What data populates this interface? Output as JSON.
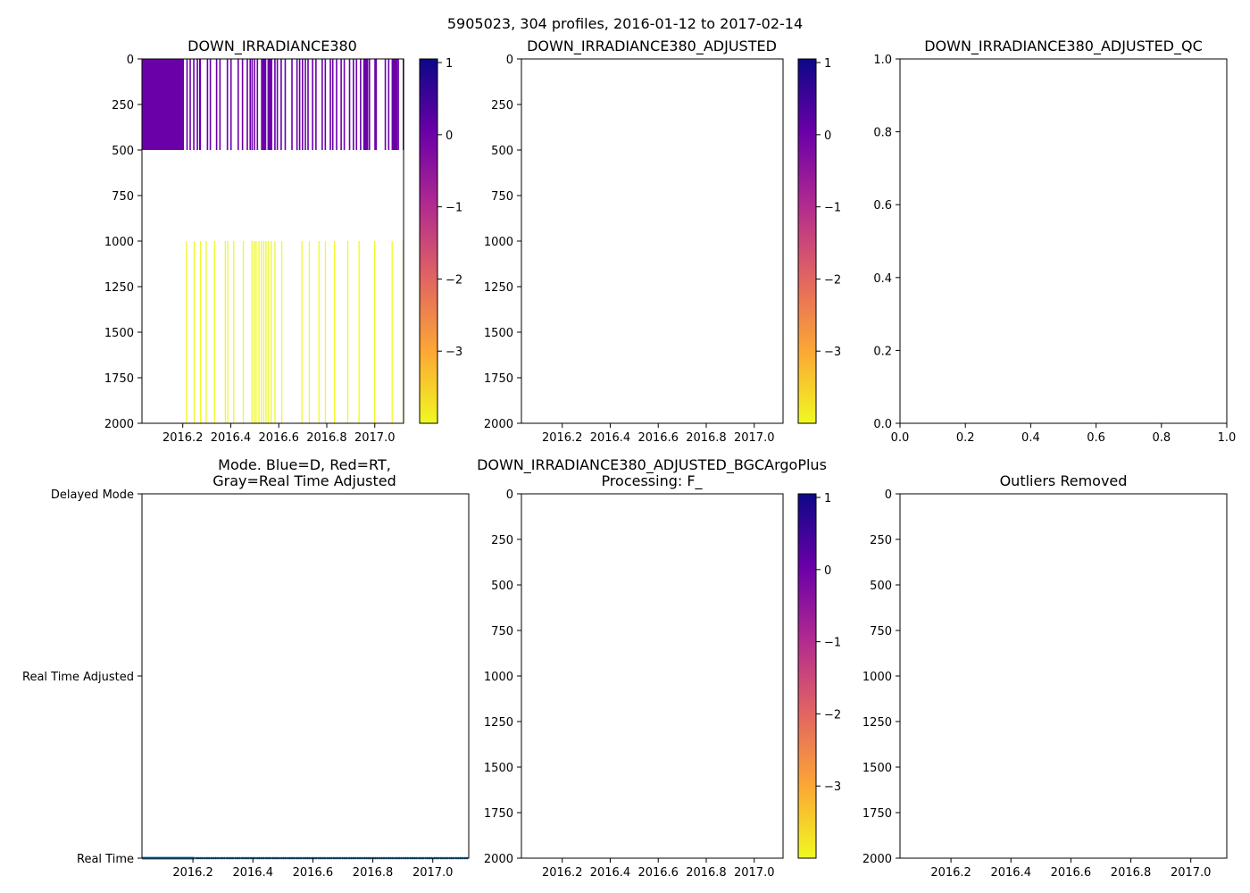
{
  "figure": {
    "suptitle": "5905023, 304 profiles, 2016-01-12 to 2017-02-14",
    "year_ticks": [
      2016.2,
      2016.4,
      2016.6,
      2016.8,
      2017.0
    ],
    "year_tick_labels": [
      "2016.2",
      "2016.4",
      "2016.6",
      "2016.8",
      "2017.0"
    ],
    "x_range": [
      2016.03,
      2017.12
    ],
    "depth_range": [
      0,
      2000
    ],
    "depth_ticks": [
      0,
      250,
      500,
      750,
      1000,
      1250,
      1500,
      1750,
      2000
    ],
    "colormap": [
      "#0d0887",
      "#6a00a8",
      "#b12a90",
      "#e16462",
      "#fca636",
      "#f0f921"
    ],
    "colorbar_range": [
      -4.0,
      1.05
    ],
    "colorbar_ticks": [
      1,
      0,
      -1,
      -2,
      -3
    ],
    "colorbar_tick_labels": [
      "1",
      "0",
      "−1",
      "−2",
      "−3"
    ],
    "mode_series_color": "#1f77b4",
    "fill_color": "#6a00a8",
    "deep_line_color": "#f0f921"
  },
  "chart_data": [
    {
      "id": "raw",
      "type": "heatmap",
      "title": "DOWN_IRRADIANCE380",
      "xlabel": "",
      "ylabel": "",
      "xlim": [
        2016.03,
        2017.12
      ],
      "ylim": [
        2000,
        0
      ],
      "colorbar": true,
      "shallow_layer": {
        "depth_range": [
          0,
          500
        ],
        "value": 0.0,
        "solid_ranges": [
          [
            2016.03,
            2016.205
          ]
        ],
        "profile_times": [
          2016.215,
          2016.228,
          2016.243,
          2016.258,
          2016.268,
          2016.3,
          2016.312,
          2016.338,
          2016.352,
          2016.383,
          2016.398,
          2016.428,
          2016.446,
          2016.466,
          2016.478,
          2016.486,
          2016.496,
          2016.508,
          2016.526,
          2016.541,
          2016.553,
          2016.567,
          2016.581,
          2016.591,
          2016.607,
          2016.624,
          2016.652,
          2016.673,
          2016.684,
          2016.696,
          2016.708,
          2016.719,
          2016.738,
          2016.752,
          2016.778,
          2016.791,
          2016.812,
          2016.822,
          2016.838,
          2016.857,
          2016.87,
          2016.892,
          2016.908,
          2016.921,
          2016.938,
          2016.96,
          2016.975,
          2016.998,
          2017.003,
          2017.041,
          2017.055,
          2017.08,
          2017.095,
          2017.12
        ],
        "block_ranges": [
          [
            2016.268,
            2016.276
          ],
          [
            2016.528,
            2016.548
          ],
          [
            2016.555,
            2016.571
          ],
          [
            2016.952,
            2016.973
          ],
          [
            2017.07,
            2017.095
          ]
        ]
      },
      "deep_profiles": {
        "depth_range": [
          1000,
          2000
        ],
        "value": -4.0,
        "profile_times": [
          2016.213,
          2016.245,
          2016.272,
          2016.295,
          2016.33,
          2016.375,
          2016.385,
          2016.41,
          2016.45,
          2016.486,
          2016.495,
          2016.503,
          2016.515,
          2016.525,
          2016.535,
          2016.544,
          2016.553,
          2016.566,
          2016.582,
          2016.61,
          2016.694,
          2016.725,
          2016.765,
          2016.792,
          2016.83,
          2016.885,
          2016.932,
          2016.997,
          2017.07,
          2017.118
        ]
      }
    },
    {
      "id": "adjusted",
      "type": "heatmap",
      "title": "DOWN_IRRADIANCE380_ADJUSTED",
      "xlabel": "",
      "ylabel": "",
      "xlim": [
        2016.03,
        2017.12
      ],
      "ylim": [
        2000,
        0
      ],
      "colorbar": true,
      "values": []
    },
    {
      "id": "adjusted_qc",
      "type": "scatter",
      "title": "DOWN_IRRADIANCE380_ADJUSTED_QC",
      "xlabel": "",
      "ylabel": "",
      "xlim": [
        0,
        1
      ],
      "ylim": [
        0,
        1
      ],
      "x_ticks": [
        0.0,
        0.2,
        0.4,
        0.6,
        0.8,
        1.0
      ],
      "x_tick_labels": [
        "0.0",
        "0.2",
        "0.4",
        "0.6",
        "0.8",
        "1.0"
      ],
      "y_ticks": [
        0.0,
        0.2,
        0.4,
        0.6,
        0.8,
        1.0
      ],
      "y_tick_labels": [
        "0.0",
        "0.2",
        "0.4",
        "0.6",
        "0.8",
        "1.0"
      ],
      "values": []
    },
    {
      "id": "mode",
      "type": "scatter",
      "title_lines": [
        "Mode. Blue=D, Red=RT,",
        "Gray=Real Time Adjusted"
      ],
      "xlabel": "",
      "ylabel": "",
      "xlim": [
        2016.03,
        2017.12
      ],
      "categories": [
        "Delayed Mode",
        "Real Time Adjusted",
        "Real Time"
      ],
      "series": [
        {
          "name": "Real Time",
          "level": "Real Time",
          "solid_ranges": [
            [
              2016.03,
              2016.205
            ]
          ],
          "x": [
            2016.211,
            2016.218,
            2016.225,
            2016.232,
            2016.24,
            2016.247,
            2016.254,
            2016.262,
            2016.269,
            2016.276,
            2016.283,
            2016.291,
            2016.298,
            2016.305,
            2016.313,
            2016.32,
            2016.327,
            2016.334,
            2016.342,
            2016.349,
            2016.356,
            2016.364,
            2016.371,
            2016.378,
            2016.385,
            2016.393,
            2016.4,
            2016.407,
            2016.415,
            2016.422,
            2016.429,
            2016.436,
            2016.444,
            2016.451,
            2016.458,
            2016.466,
            2016.473,
            2016.48,
            2016.487,
            2016.495,
            2016.502,
            2016.509,
            2016.517,
            2016.524,
            2016.531,
            2016.538,
            2016.546,
            2016.553,
            2016.56,
            2016.568,
            2016.575,
            2016.582,
            2016.589,
            2016.597,
            2016.604,
            2016.611,
            2016.619,
            2016.626,
            2016.633,
            2016.64,
            2016.648,
            2016.655,
            2016.662,
            2016.67,
            2016.677,
            2016.684,
            2016.691,
            2016.699,
            2016.706,
            2016.713,
            2016.721,
            2016.728,
            2016.735,
            2016.742,
            2016.75,
            2016.757,
            2016.764,
            2016.772,
            2016.779,
            2016.786,
            2016.793,
            2016.801,
            2016.808,
            2016.815,
            2016.823,
            2016.83,
            2016.837,
            2016.844,
            2016.852,
            2016.859,
            2016.866,
            2016.874,
            2016.881,
            2016.888,
            2016.895,
            2016.903,
            2016.91,
            2016.917,
            2016.925,
            2016.932,
            2016.939,
            2016.946,
            2016.954,
            2016.961,
            2016.968,
            2016.976,
            2016.983,
            2016.99,
            2016.997,
            2017.005,
            2017.012,
            2017.019,
            2017.027,
            2017.034,
            2017.041,
            2017.048,
            2017.056,
            2017.063,
            2017.07,
            2017.078,
            2017.085,
            2017.092,
            2017.099,
            2017.107,
            2017.114
          ]
        }
      ]
    },
    {
      "id": "bgcargoplus",
      "type": "heatmap",
      "title_lines": [
        "DOWN_IRRADIANCE380_ADJUSTED_BGCArgoPlus",
        "Processing: F_"
      ],
      "xlabel": "",
      "ylabel": "",
      "xlim": [
        2016.03,
        2017.12
      ],
      "ylim": [
        2000,
        0
      ],
      "colorbar": true,
      "values": []
    },
    {
      "id": "outliers",
      "type": "scatter",
      "title": "Outliers Removed",
      "xlabel": "",
      "ylabel": "",
      "xlim": [
        2016.03,
        2017.12
      ],
      "ylim": [
        2000,
        0
      ],
      "values": []
    }
  ]
}
